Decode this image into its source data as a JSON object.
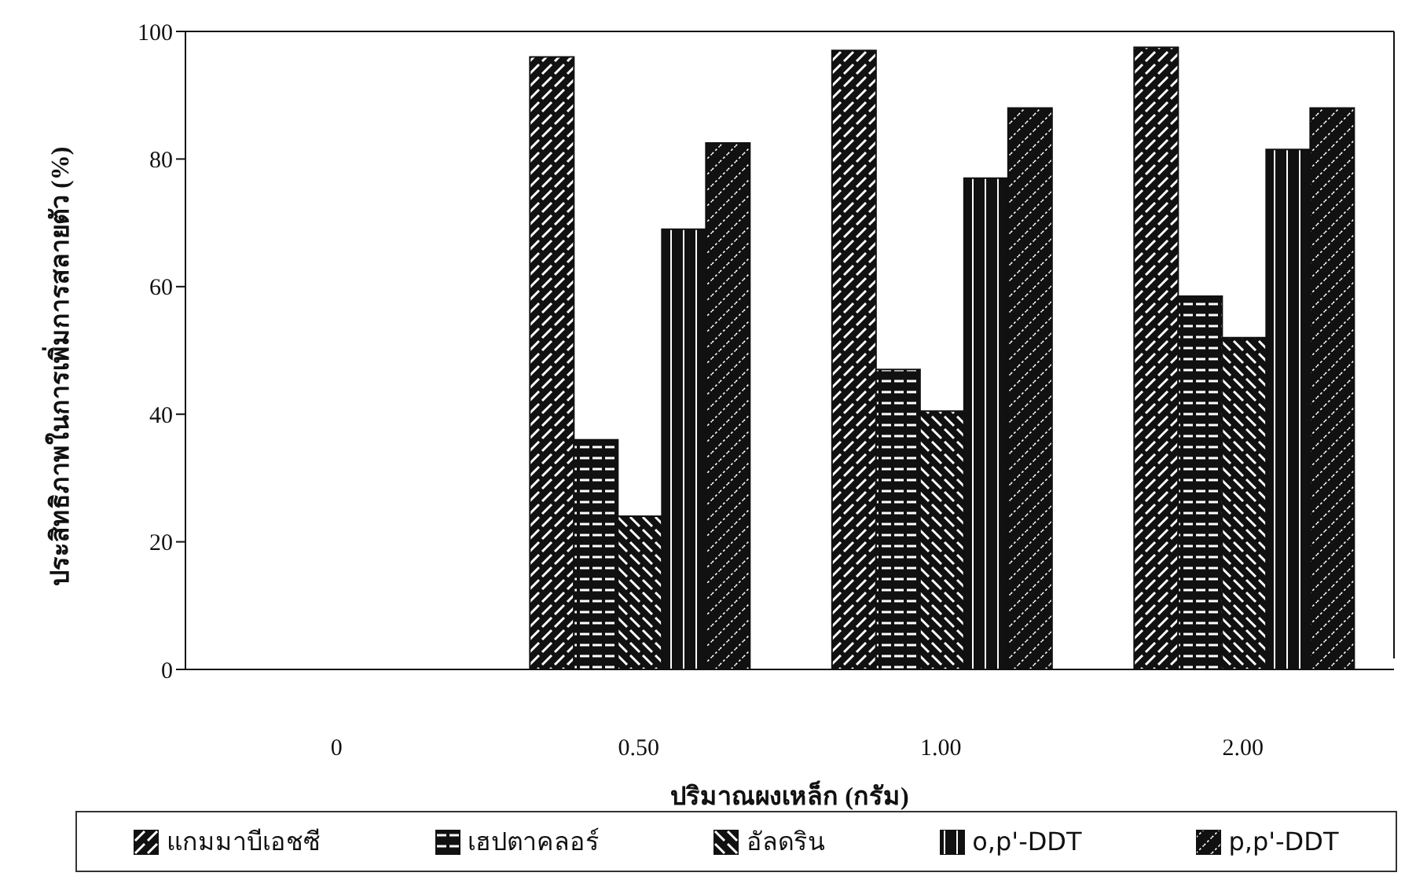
{
  "chart_data": {
    "type": "bar",
    "xlabel": "ปริมาณผงเหล็ก (กรัม)",
    "ylabel": "ประสิทธิภาพในการเพิ่มการสลายตัว (%)",
    "categories": [
      "0",
      "0.50",
      "1.00",
      "2.00"
    ],
    "series": [
      {
        "name": "แกมมาบีเอชซี",
        "color": "#111111",
        "values": [
          0,
          96,
          97,
          97.5
        ]
      },
      {
        "name": "เฮปตาคลอร์",
        "color": "#111111",
        "values": [
          0,
          36,
          47,
          58.5
        ]
      },
      {
        "name": "อัลดริน",
        "color": "#111111",
        "values": [
          0,
          24,
          40.5,
          52
        ]
      },
      {
        "name": "o,p'-DDT",
        "color": "#111111",
        "values": [
          0,
          69,
          77,
          81.5
        ]
      },
      {
        "name": "p,p'-DDT",
        "color": "#111111",
        "values": [
          0,
          82.5,
          88,
          88
        ]
      }
    ],
    "ylim": [
      0,
      100
    ],
    "yticks": [
      0,
      20,
      40,
      60,
      80,
      100
    ],
    "legend": "bottom",
    "grid": false
  }
}
